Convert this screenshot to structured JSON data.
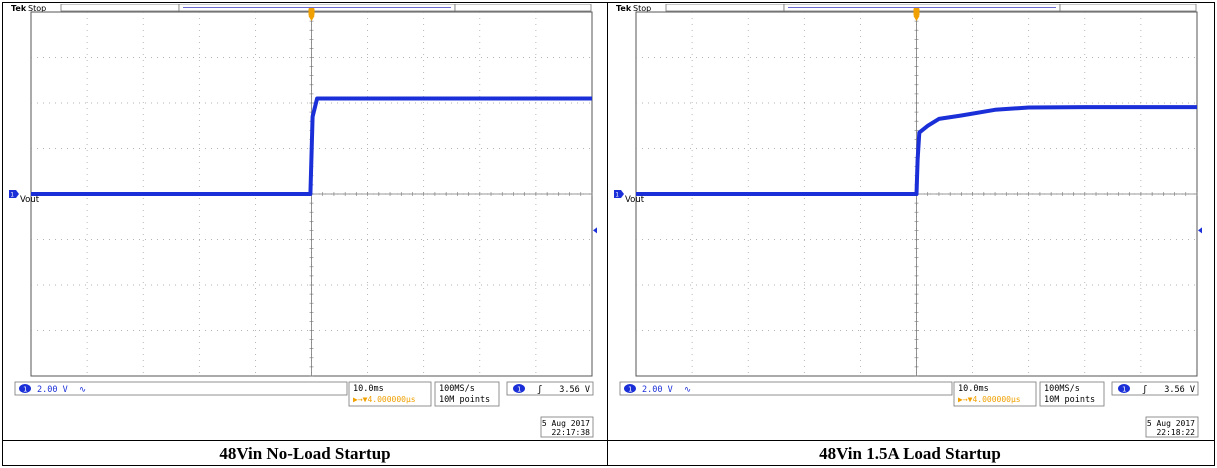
{
  "panels": [
    {
      "brand": "Tek",
      "status": "Stop",
      "channel_label": "Vout",
      "channel_number": "1",
      "ch1_scale": "2.00 V",
      "ch1_coupling": "∿",
      "timebase": "10.0ms",
      "trigger_pos": "▶→▼4.000000µs",
      "sample_rate": "100MS/s",
      "record_length": "10M points",
      "trig_channel": "1",
      "trig_slope": "ʃ",
      "trig_level": "3.56 V",
      "date": "5 Aug 2017",
      "time": "22:17:38",
      "caption": "48Vin No-Load Startup"
    },
    {
      "brand": "Tek",
      "status": "Stop",
      "channel_label": "Vout",
      "channel_number": "1",
      "ch1_scale": "2.00 V",
      "ch1_coupling": "∿",
      "timebase": "10.0ms",
      "trigger_pos": "▶→▼4.000000µs",
      "sample_rate": "100MS/s",
      "record_length": "10M points",
      "trig_channel": "1",
      "trig_slope": "ʃ",
      "trig_level": "3.56 V",
      "date": "5 Aug 2017",
      "time": "22:18:22",
      "caption": "48Vin 1.5A Load Startup"
    }
  ],
  "colors": {
    "trace": "#1a2fd8",
    "trigger": "#f0a000",
    "grid": "#9a9a9a",
    "readout": "#1a2fd8"
  },
  "chart_data": [
    {
      "type": "line",
      "title": "48Vin No-Load Startup",
      "x_units": "divisions",
      "y_units": "V",
      "xlim": [
        0,
        10
      ],
      "ylim": [
        -8,
        8
      ],
      "grid": true,
      "series": [
        {
          "name": "Vout",
          "x": [
            0,
            4.98,
            5.0,
            5.02,
            5.1,
            10
          ],
          "y": [
            0.0,
            0.0,
            1.7,
            3.4,
            4.2,
            4.2
          ]
        }
      ]
    },
    {
      "type": "line",
      "title": "48Vin 1.5A Load Startup",
      "x_units": "divisions",
      "y_units": "V",
      "xlim": [
        0,
        10
      ],
      "ylim": [
        -8,
        8
      ],
      "grid": true,
      "series": [
        {
          "name": "Vout",
          "x": [
            0,
            5.0,
            5.02,
            5.05,
            5.2,
            5.4,
            5.8,
            6.4,
            7.0,
            8.0,
            10
          ],
          "y": [
            0.0,
            0.0,
            1.5,
            2.7,
            3.0,
            3.3,
            3.45,
            3.7,
            3.8,
            3.82,
            3.82
          ]
        }
      ]
    }
  ]
}
